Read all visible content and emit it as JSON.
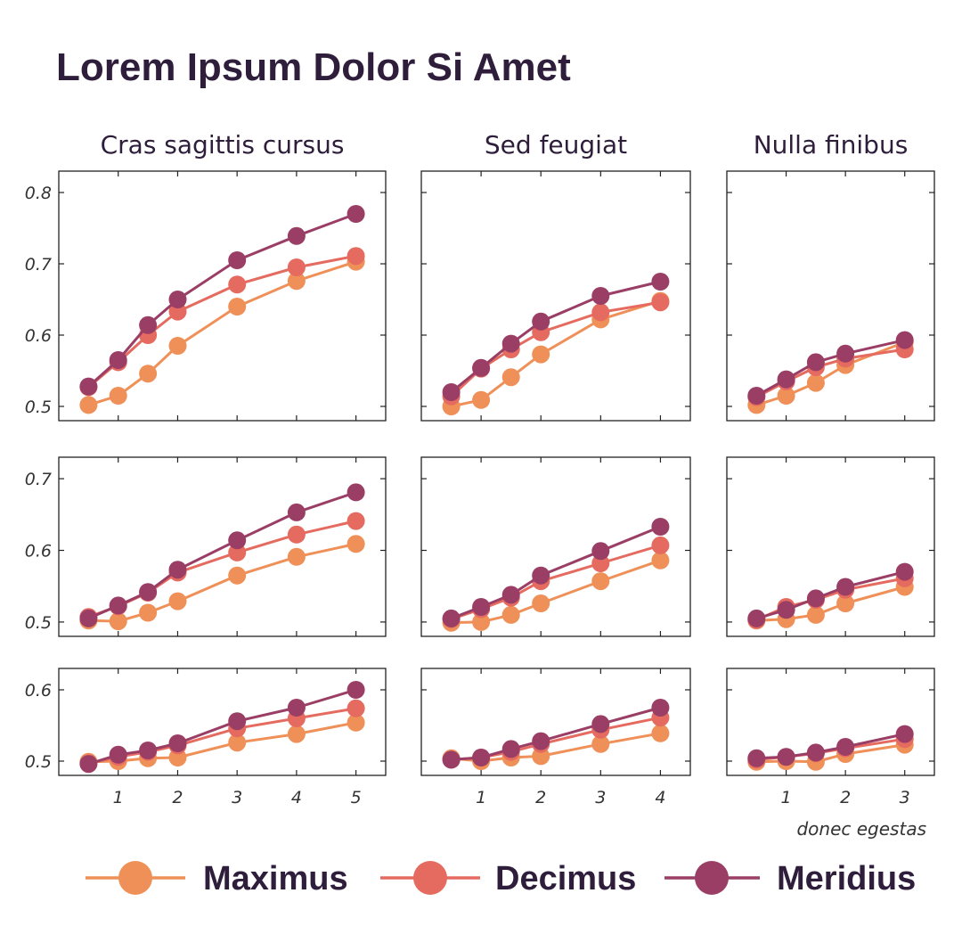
{
  "chart_data": {
    "type": "line",
    "title": "Lorem Ipsum Dolor Si Amet",
    "xlabel": "donec egestas",
    "column_titles": [
      "Cras sagittis cursus",
      "Sed feugiat",
      "Nulla finibus"
    ],
    "legend": {
      "position": "bottom"
    },
    "series_names": [
      "Maximus",
      "Decimus",
      "Meridius"
    ],
    "series_colors": [
      "#ef9058",
      "#e56b60",
      "#9b3e66"
    ],
    "columns": [
      {
        "xlim": [
          0,
          5.5
        ],
        "xticks": [
          "1",
          "2",
          "3",
          "4",
          "5"
        ],
        "x": [
          0.5,
          1,
          1.5,
          2,
          3,
          4,
          5
        ]
      },
      {
        "xlim": [
          0,
          4.5
        ],
        "xticks": [
          "1",
          "2",
          "3",
          "4"
        ],
        "x": [
          0.5,
          1,
          1.5,
          2,
          3,
          4
        ]
      },
      {
        "xlim": [
          0,
          3.5
        ],
        "xticks": [
          "1",
          "2",
          "3"
        ],
        "x": [
          0.5,
          1,
          1.5,
          2,
          3
        ]
      }
    ],
    "rows": [
      {
        "ylim": [
          0.48,
          0.83
        ],
        "yticks": [
          "0.5",
          "0.6",
          "0.7",
          "0.8"
        ]
      },
      {
        "ylim": [
          0.48,
          0.73
        ],
        "yticks": [
          "0.5",
          "0.6",
          "0.7"
        ]
      },
      {
        "ylim": [
          0.48,
          0.63
        ],
        "yticks": [
          "0.5",
          "0.6"
        ]
      }
    ],
    "panels": [
      [
        {
          "series": [
            {
              "name": "Maximus",
              "values": [
                0.502,
                0.515,
                0.546,
                0.585,
                0.64,
                0.676,
                0.703
              ]
            },
            {
              "name": "Decimus",
              "values": [
                0.527,
                0.562,
                0.6,
                0.633,
                0.671,
                0.695,
                0.711
              ]
            },
            {
              "name": "Meridius",
              "values": [
                0.528,
                0.565,
                0.614,
                0.65,
                0.705,
                0.739,
                0.77
              ]
            }
          ]
        },
        {
          "series": [
            {
              "name": "Maximus",
              "values": [
                0.5,
                0.509,
                0.541,
                0.573,
                0.622,
                0.648
              ]
            },
            {
              "name": "Decimus",
              "values": [
                0.514,
                0.553,
                0.58,
                0.604,
                0.632,
                0.646
              ]
            },
            {
              "name": "Meridius",
              "values": [
                0.52,
                0.554,
                0.588,
                0.619,
                0.655,
                0.675
              ]
            }
          ]
        },
        {
          "series": [
            {
              "name": "Maximus",
              "values": [
                0.502,
                0.515,
                0.533,
                0.558,
                0.59
              ]
            },
            {
              "name": "Decimus",
              "values": [
                0.513,
                0.535,
                0.555,
                0.567,
                0.58
              ]
            },
            {
              "name": "Meridius",
              "values": [
                0.515,
                0.538,
                0.562,
                0.574,
                0.593
              ]
            }
          ]
        }
      ],
      [
        {
          "series": [
            {
              "name": "Maximus",
              "values": [
                0.502,
                0.501,
                0.513,
                0.529,
                0.565,
                0.591,
                0.609
              ]
            },
            {
              "name": "Decimus",
              "values": [
                0.507,
                0.522,
                0.541,
                0.569,
                0.597,
                0.622,
                0.641
              ]
            },
            {
              "name": "Meridius",
              "values": [
                0.505,
                0.523,
                0.542,
                0.573,
                0.614,
                0.653,
                0.681
              ]
            }
          ]
        },
        {
          "series": [
            {
              "name": "Maximus",
              "values": [
                0.499,
                0.5,
                0.51,
                0.526,
                0.557,
                0.586
              ]
            },
            {
              "name": "Decimus",
              "values": [
                0.504,
                0.518,
                0.534,
                0.557,
                0.582,
                0.607
              ]
            },
            {
              "name": "Meridius",
              "values": [
                0.505,
                0.521,
                0.538,
                0.565,
                0.599,
                0.633
              ]
            }
          ]
        },
        {
          "series": [
            {
              "name": "Maximus",
              "values": [
                0.502,
                0.504,
                0.51,
                0.526,
                0.549
              ]
            },
            {
              "name": "Decimus",
              "values": [
                0.503,
                0.521,
                0.531,
                0.545,
                0.561
              ]
            },
            {
              "name": "Meridius",
              "values": [
                0.505,
                0.517,
                0.533,
                0.549,
                0.57
              ]
            }
          ]
        }
      ],
      [
        {
          "series": [
            {
              "name": "Maximus",
              "values": [
                0.499,
                0.5,
                0.504,
                0.505,
                0.526,
                0.538,
                0.554
              ]
            },
            {
              "name": "Decimus",
              "values": [
                0.497,
                0.506,
                0.513,
                0.522,
                0.546,
                0.56,
                0.574
              ]
            },
            {
              "name": "Meridius",
              "values": [
                0.496,
                0.509,
                0.515,
                0.525,
                0.556,
                0.575,
                0.6
              ]
            }
          ]
        },
        {
          "series": [
            {
              "name": "Maximus",
              "values": [
                0.504,
                0.5,
                0.505,
                0.507,
                0.524,
                0.539
              ]
            },
            {
              "name": "Decimus",
              "values": [
                0.502,
                0.505,
                0.513,
                0.524,
                0.544,
                0.561
              ]
            },
            {
              "name": "Meridius",
              "values": [
                0.502,
                0.505,
                0.517,
                0.528,
                0.552,
                0.575
              ]
            }
          ]
        },
        {
          "series": [
            {
              "name": "Maximus",
              "values": [
                0.499,
                0.5,
                0.499,
                0.51,
                0.523
              ]
            },
            {
              "name": "Decimus",
              "values": [
                0.502,
                0.506,
                0.511,
                0.518,
                0.531
              ]
            },
            {
              "name": "Meridius",
              "values": [
                0.504,
                0.506,
                0.512,
                0.52,
                0.538
              ]
            }
          ]
        }
      ]
    ]
  }
}
